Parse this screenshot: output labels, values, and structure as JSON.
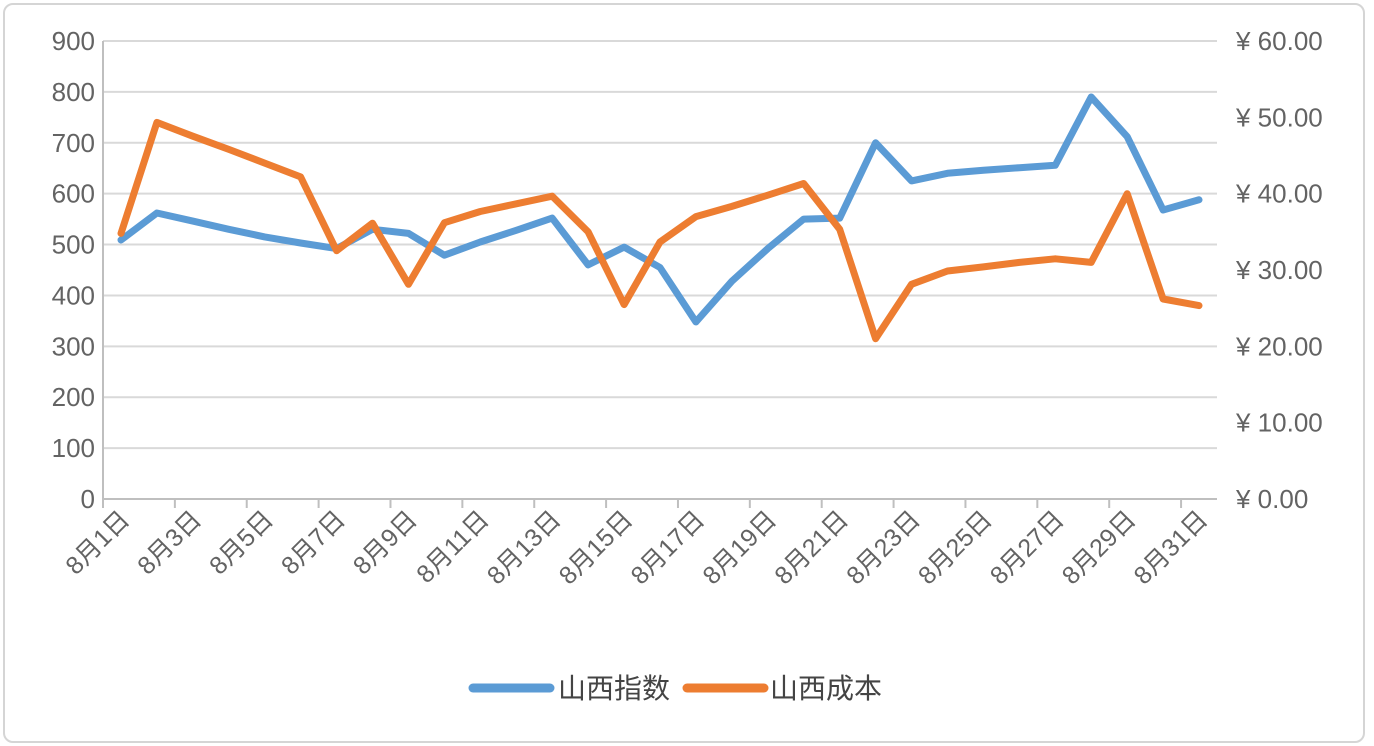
{
  "page": {
    "background_color": "#ffffff",
    "frame_border_color": "#d5d5d5"
  },
  "chart_data": {
    "type": "line",
    "title": "",
    "categories": [
      "8月1日",
      "8月2日",
      "8月3日",
      "8月4日",
      "8月5日",
      "8月6日",
      "8月7日",
      "8月8日",
      "8月9日",
      "8月10日",
      "8月11日",
      "8月12日",
      "8月13日",
      "8月14日",
      "8月15日",
      "8月16日",
      "8月17日",
      "8月18日",
      "8月19日",
      "8月20日",
      "8月21日",
      "8月22日",
      "8月23日",
      "8月24日",
      "8月25日",
      "8月26日",
      "8月27日",
      "8月28日",
      "8月29日",
      "8月30日",
      "8月31日"
    ],
    "x_tick_labels": [
      "8月1日",
      "8月3日",
      "8月5日",
      "8月7日",
      "8月9日",
      "8月11日",
      "8月13日",
      "8月15日",
      "8月17日",
      "8月19日",
      "8月21日",
      "8月23日",
      "8月25日",
      "8月27日",
      "8月29日",
      "8月31日"
    ],
    "series": [
      {
        "name": "山西指数",
        "axis": "left",
        "color": "#5B9BD5",
        "values": [
          509,
          562,
          546,
          530,
          515,
          503,
          492,
          530,
          522,
          479,
          505,
          528,
          552,
          460,
          495,
          455,
          348,
          428,
          492,
          550,
          552,
          700,
          625,
          640,
          646,
          651,
          656,
          790,
          712,
          568,
          588
        ]
      },
      {
        "name": "山西成本",
        "axis": "right",
        "color": "#ED7D31",
        "values": [
          34.8,
          49.33,
          47.53,
          45.8,
          44.0,
          42.2,
          32.53,
          36.13,
          28.13,
          36.2,
          37.67,
          38.67,
          39.67,
          35.0,
          25.47,
          33.67,
          37.0,
          38.33,
          39.8,
          41.33,
          35.33,
          21.0,
          28.13,
          29.87,
          30.4,
          31.0,
          31.47,
          31.0,
          40.0,
          26.2,
          25.33
        ]
      }
    ],
    "left_axis": {
      "min": 0,
      "max": 900,
      "step": 100,
      "tick_labels": [
        "0",
        "100",
        "200",
        "300",
        "400",
        "500",
        "600",
        "700",
        "800",
        "900"
      ]
    },
    "right_axis": {
      "min": 0,
      "max": 60,
      "step": 10,
      "tick_labels": [
        "¥ 0.00",
        "¥ 10.00",
        "¥ 20.00",
        "¥ 30.00",
        "¥ 40.00",
        "¥ 50.00",
        "¥ 60.00"
      ]
    },
    "legend": {
      "position": "bottom",
      "entries": [
        "山西指数",
        "山西成本"
      ]
    },
    "grid": true,
    "styles": {
      "grid_color": "#d9d9d9",
      "axis_line_color": "#bfbfbf",
      "label_color": "#636363",
      "legend_text_color": "#444444",
      "series_line_width": 7
    }
  }
}
